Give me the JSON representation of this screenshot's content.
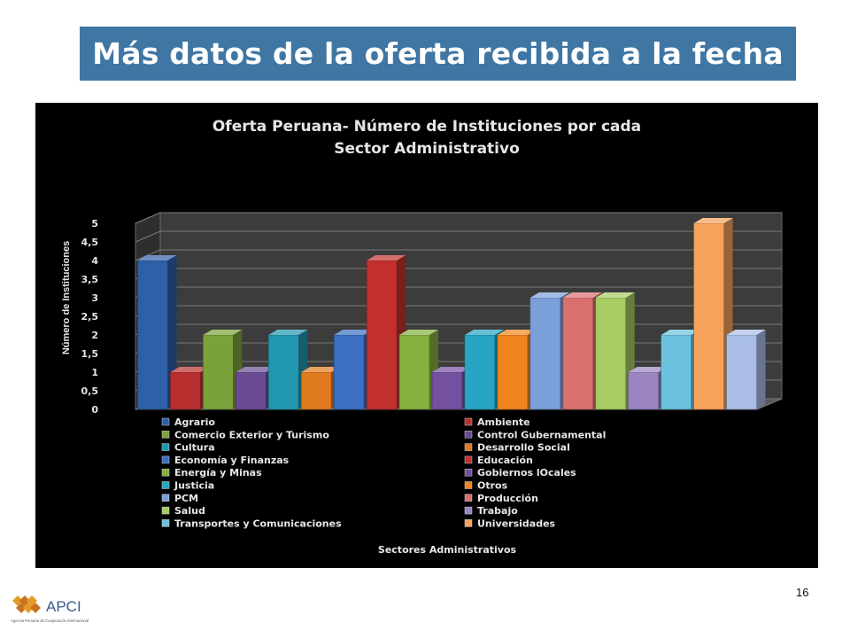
{
  "slide": {
    "title": "Más datos de la oferta recibida a la fecha",
    "page_number": "16",
    "logo": {
      "name": "APCI",
      "tagline": "Agencia Peruana de Cooperación Internacional"
    }
  },
  "chart_data": {
    "type": "bar",
    "title": "Oferta Peruana- Número de Instituciones por cada Sector Administrativo",
    "title_lines": [
      "Oferta Peruana- Número de Instituciones por cada",
      "Sector Administrativo"
    ],
    "ylabel": "Número de Instituciones",
    "xlabel": "Sectores Administrativos",
    "ylim": [
      0,
      5
    ],
    "yticks": [
      "0",
      "0,5",
      "1",
      "1,5",
      "2",
      "2,5",
      "3",
      "3,5",
      "4",
      "4,5",
      "5"
    ],
    "grid": true,
    "legend_position": "bottom",
    "series": [
      {
        "name": "Agrario",
        "value": 4,
        "color": "#2e5fa8"
      },
      {
        "name": "Ambiente",
        "value": 1,
        "color": "#b7302f"
      },
      {
        "name": "Comercio Exterior y Turismo",
        "value": 2,
        "color": "#7ba23a"
      },
      {
        "name": "Control Gubernamental",
        "value": 1,
        "color": "#6a4b93"
      },
      {
        "name": "Cultura",
        "value": 2,
        "color": "#2298b0"
      },
      {
        "name": "Desarrollo Social",
        "value": 1,
        "color": "#e07a1f"
      },
      {
        "name": "Economía y Finanzas",
        "value": 2,
        "color": "#3a6fc2"
      },
      {
        "name": "Educación",
        "value": 4,
        "color": "#c2302e"
      },
      {
        "name": "Energía y Minas",
        "value": 2,
        "color": "#86b03f"
      },
      {
        "name": "Gobiernos lOcales",
        "value": 1,
        "color": "#7450a0"
      },
      {
        "name": "Justicia",
        "value": 2,
        "color": "#26a6c4"
      },
      {
        "name": "Otros",
        "value": 2,
        "color": "#f0851f"
      },
      {
        "name": "PCM",
        "value": 3,
        "color": "#7b9fd8"
      },
      {
        "name": "Producción",
        "value": 3,
        "color": "#d9706e"
      },
      {
        "name": "Salud",
        "value": 3,
        "color": "#a6cc62"
      },
      {
        "name": "Trabajo",
        "value": 1,
        "color": "#9b84c2"
      },
      {
        "name": "Transportes y Comunicaciones",
        "value": 2,
        "color": "#6bc2de"
      },
      {
        "name": "Universidades",
        "value": 5,
        "color": "#f7a25c"
      },
      {
        "name": "",
        "value": 2,
        "color": "#a9bde6"
      }
    ]
  }
}
